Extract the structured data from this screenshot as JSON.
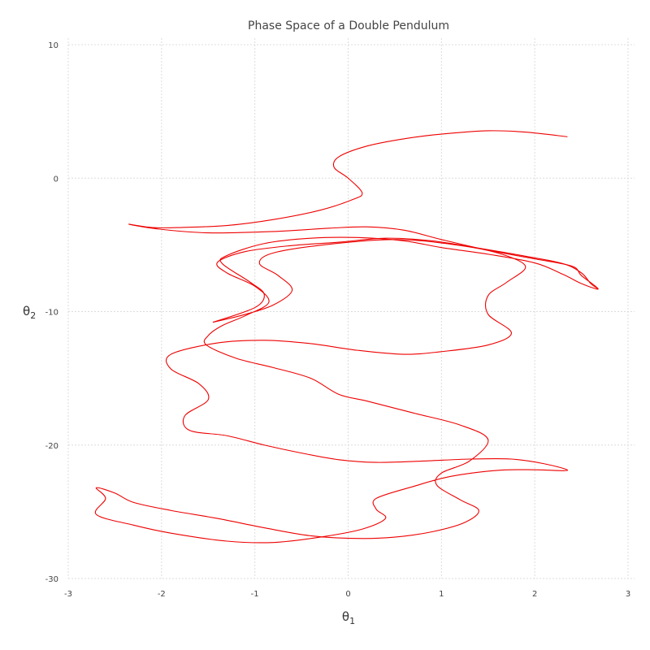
{
  "chart_data": {
    "type": "line",
    "title": "Phase Space of a Double Pendulum",
    "xlabel": {
      "base": "θ",
      "sub": "1"
    },
    "ylabel": {
      "base": "θ",
      "sub": "2"
    },
    "xlim": [
      -3,
      3
    ],
    "ylim": [
      -30,
      10
    ],
    "x_ticks": [
      -3,
      -2,
      -1,
      0,
      1,
      2,
      3
    ],
    "y_ticks": [
      -30,
      -20,
      -10,
      0,
      10
    ],
    "grid": true,
    "legend": "none",
    "series": [
      {
        "color": "#ee0000",
        "points": [
          [
            2.35,
            3.1
          ],
          [
            1.9,
            3.45
          ],
          [
            1.5,
            3.55
          ],
          [
            1.0,
            3.3
          ],
          [
            0.6,
            2.95
          ],
          [
            0.2,
            2.4
          ],
          [
            -0.1,
            1.6
          ],
          [
            -0.15,
            0.8
          ],
          [
            0.0,
            0.0
          ],
          [
            0.15,
            -1.1
          ],
          [
            0.05,
            -1.6
          ],
          [
            -0.3,
            -2.4
          ],
          [
            -0.8,
            -3.1
          ],
          [
            -1.3,
            -3.55
          ],
          [
            -1.8,
            -3.7
          ],
          [
            -2.1,
            -3.7
          ],
          [
            -2.35,
            -3.45
          ],
          [
            -2.05,
            -3.8
          ],
          [
            -1.5,
            -4.1
          ],
          [
            -0.8,
            -4.0
          ],
          [
            -0.2,
            -3.75
          ],
          [
            0.2,
            -3.65
          ],
          [
            0.6,
            -3.9
          ],
          [
            1.0,
            -4.6
          ],
          [
            1.5,
            -5.4
          ],
          [
            2.0,
            -6.05
          ],
          [
            2.4,
            -6.6
          ],
          [
            2.5,
            -7.3
          ],
          [
            2.68,
            -8.3
          ],
          [
            2.5,
            -7.9
          ],
          [
            2.3,
            -7.2
          ],
          [
            2.0,
            -6.35
          ],
          [
            1.5,
            -5.7
          ],
          [
            1.0,
            -5.2
          ],
          [
            0.6,
            -4.7
          ],
          [
            0.1,
            -4.45
          ],
          [
            -0.4,
            -4.5
          ],
          [
            -0.9,
            -4.9
          ],
          [
            -1.3,
            -5.8
          ],
          [
            -1.35,
            -6.4
          ],
          [
            -1.05,
            -7.8
          ],
          [
            -0.9,
            -8.7
          ],
          [
            -1.0,
            -9.7
          ],
          [
            -1.45,
            -10.8
          ]
        ]
      },
      {
        "color": "#ee0000",
        "points": [
          [
            -1.45,
            -10.8
          ],
          [
            -1.1,
            -10.2
          ],
          [
            -0.8,
            -9.5
          ],
          [
            -0.6,
            -8.4
          ],
          [
            -0.75,
            -7.3
          ],
          [
            -0.95,
            -6.4
          ],
          [
            -0.8,
            -5.6
          ],
          [
            -0.2,
            -4.95
          ],
          [
            0.5,
            -4.6
          ],
          [
            1.1,
            -4.95
          ],
          [
            1.6,
            -5.6
          ],
          [
            1.9,
            -6.6
          ],
          [
            1.7,
            -7.8
          ],
          [
            1.5,
            -8.8
          ],
          [
            1.5,
            -10.2
          ],
          [
            1.75,
            -11.6
          ],
          [
            1.5,
            -12.5
          ],
          [
            1.0,
            -13.0
          ],
          [
            0.6,
            -13.2
          ],
          [
            0.1,
            -12.9
          ],
          [
            -0.4,
            -12.4
          ],
          [
            -0.9,
            -12.15
          ],
          [
            -1.4,
            -12.35
          ],
          [
            -1.9,
            -13.2
          ],
          [
            -1.9,
            -14.3
          ],
          [
            -1.6,
            -15.4
          ],
          [
            -1.5,
            -16.6
          ],
          [
            -1.75,
            -17.8
          ],
          [
            -1.7,
            -18.9
          ],
          [
            -1.3,
            -19.3
          ],
          [
            -0.9,
            -20.0
          ],
          [
            -0.5,
            -20.6
          ],
          [
            -0.1,
            -21.1
          ],
          [
            0.3,
            -21.3
          ],
          [
            0.8,
            -21.2
          ],
          [
            1.3,
            -21.05
          ],
          [
            1.75,
            -21.05
          ],
          [
            2.1,
            -21.4
          ],
          [
            2.35,
            -21.9
          ],
          [
            2.0,
            -21.85
          ],
          [
            1.6,
            -21.9
          ],
          [
            1.1,
            -22.35
          ],
          [
            0.7,
            -23.1
          ],
          [
            0.3,
            -24.0
          ],
          [
            0.3,
            -24.8
          ],
          [
            0.4,
            -25.5
          ],
          [
            0.15,
            -26.3
          ],
          [
            -0.3,
            -26.9
          ],
          [
            -0.8,
            -27.3
          ],
          [
            -1.3,
            -27.2
          ],
          [
            -1.9,
            -26.6
          ],
          [
            -2.3,
            -26.0
          ],
          [
            -2.7,
            -25.2
          ],
          [
            -2.6,
            -24.0
          ],
          [
            -2.7,
            -23.2
          ],
          [
            -2.5,
            -23.6
          ],
          [
            -2.3,
            -24.3
          ],
          [
            -1.9,
            -24.9
          ],
          [
            -1.4,
            -25.5
          ],
          [
            -0.9,
            -26.2
          ],
          [
            -0.4,
            -26.8
          ],
          [
            0.1,
            -27.0
          ],
          [
            0.5,
            -26.9
          ],
          [
            0.9,
            -26.5
          ],
          [
            1.25,
            -25.8
          ],
          [
            1.4,
            -24.9
          ],
          [
            1.2,
            -24.1
          ],
          [
            0.95,
            -23.0
          ],
          [
            1.0,
            -22.1
          ],
          [
            1.3,
            -21.2
          ],
          [
            1.5,
            -19.6
          ],
          [
            1.2,
            -18.5
          ],
          [
            0.7,
            -17.6
          ],
          [
            0.2,
            -16.7
          ],
          [
            -0.1,
            -16.2
          ],
          [
            -0.4,
            -15.0
          ],
          [
            -0.8,
            -14.2
          ],
          [
            -1.2,
            -13.5
          ],
          [
            -1.52,
            -12.5
          ],
          [
            -1.5,
            -11.8
          ],
          [
            -1.35,
            -11.05
          ],
          [
            -1.1,
            -10.3
          ],
          [
            -0.85,
            -9.3
          ],
          [
            -1.0,
            -8.1
          ],
          [
            -1.3,
            -7.1
          ],
          [
            -1.4,
            -6.3
          ],
          [
            -1.1,
            -5.5
          ],
          [
            -0.6,
            -5.05
          ],
          [
            -0.1,
            -4.8
          ],
          [
            0.4,
            -4.5
          ],
          [
            0.9,
            -4.7
          ],
          [
            1.4,
            -5.25
          ],
          [
            1.9,
            -5.85
          ],
          [
            2.3,
            -6.4
          ],
          [
            2.5,
            -7.1
          ],
          [
            2.6,
            -7.9
          ],
          [
            2.68,
            -8.3
          ]
        ]
      }
    ]
  }
}
